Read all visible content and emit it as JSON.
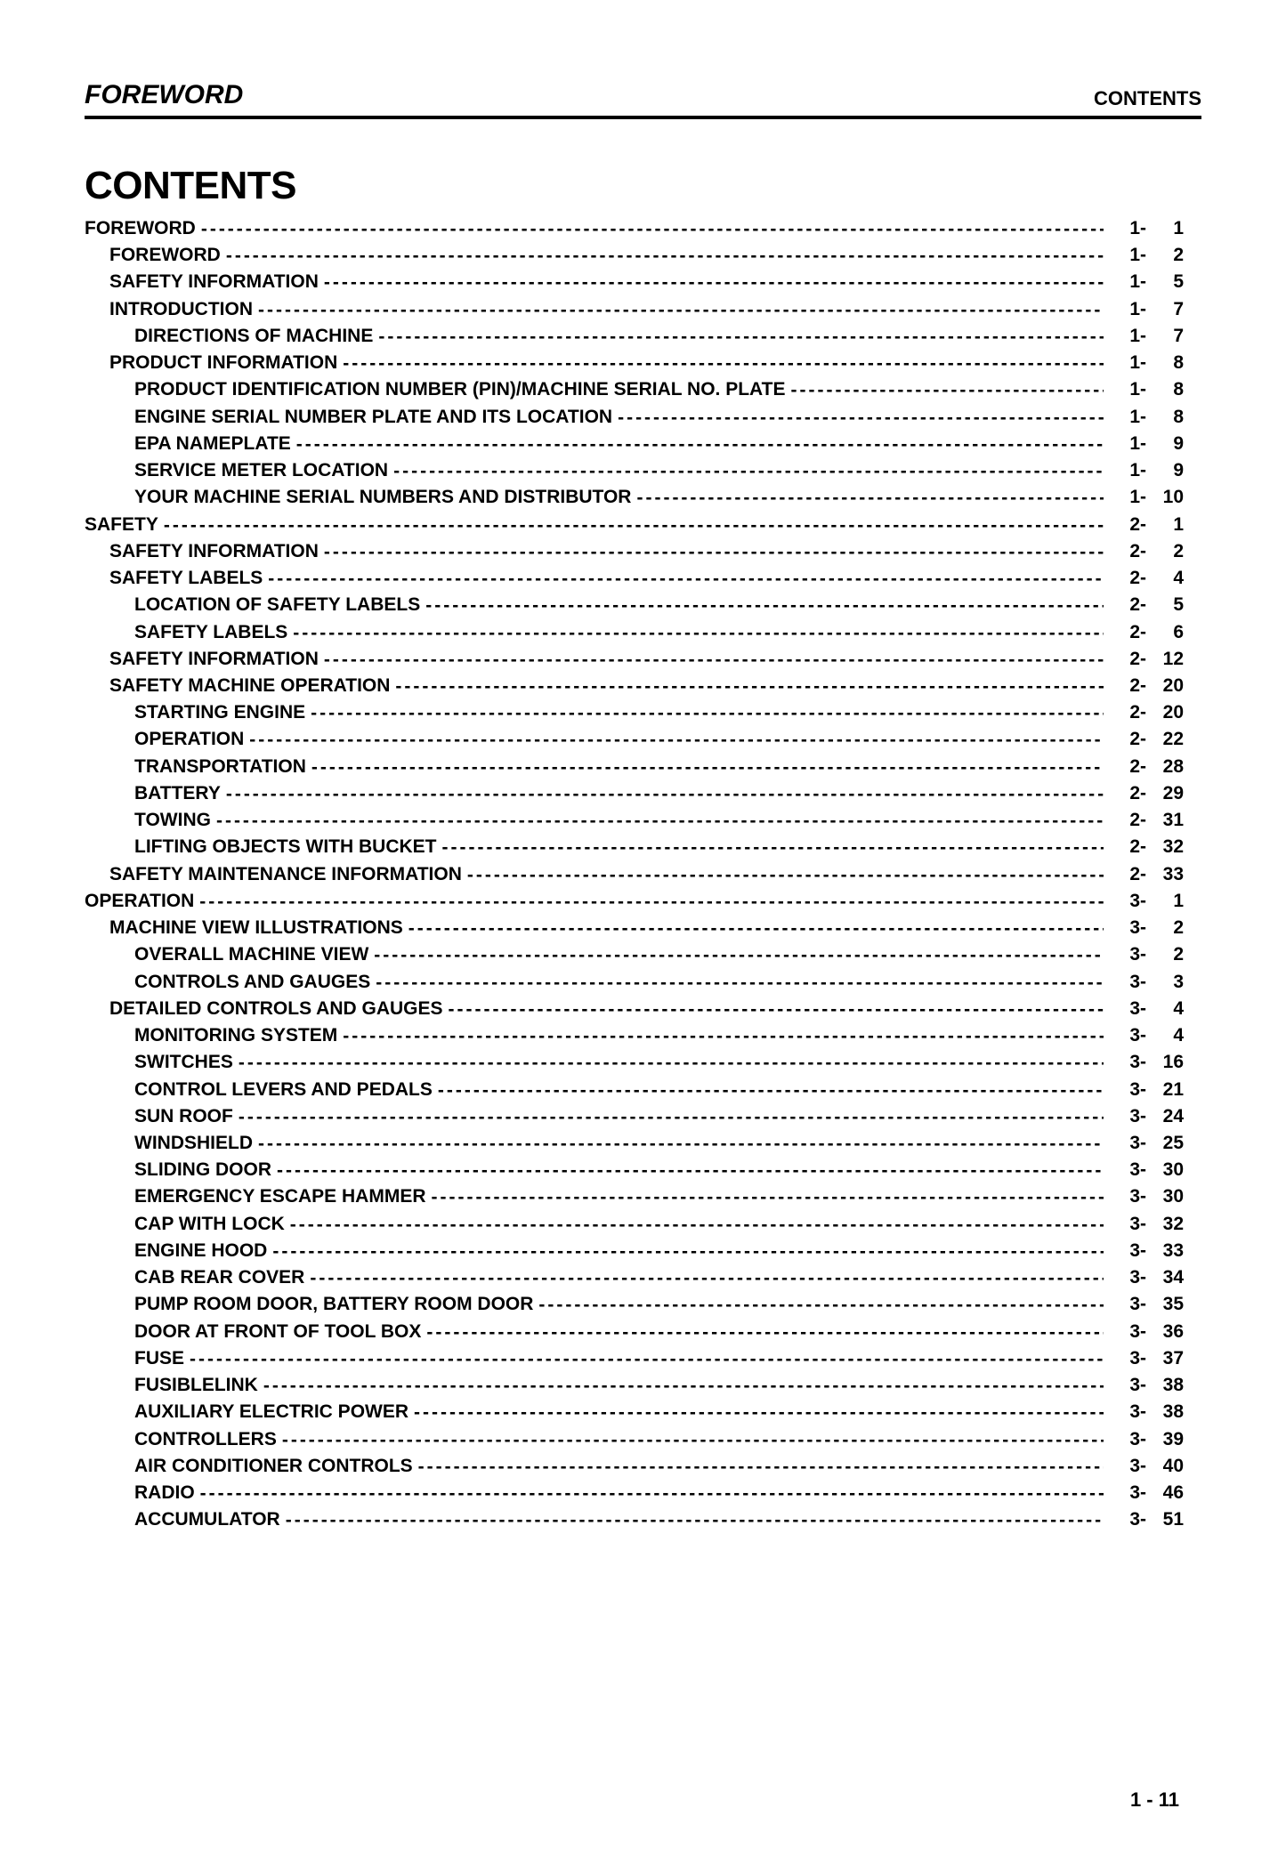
{
  "header": {
    "left": "FOREWORD",
    "right": "CONTENTS"
  },
  "title": "CONTENTS",
  "footer": "1 - 11",
  "leader_char": "-",
  "entries": [
    {
      "indent": 0,
      "label": "FOREWORD",
      "sec": "1-",
      "num": "1"
    },
    {
      "indent": 1,
      "label": "FOREWORD",
      "sec": "1-",
      "num": "2"
    },
    {
      "indent": 1,
      "label": "SAFETY INFORMATION",
      "sec": "1-",
      "num": "5"
    },
    {
      "indent": 1,
      "label": "INTRODUCTION",
      "sec": "1-",
      "num": "7"
    },
    {
      "indent": 2,
      "label": "DIRECTIONS OF MACHINE",
      "sec": "1-",
      "num": "7"
    },
    {
      "indent": 1,
      "label": "PRODUCT INFORMATION",
      "sec": "1-",
      "num": "8"
    },
    {
      "indent": 2,
      "label": "PRODUCT IDENTIFICATION NUMBER (PIN)/MACHINE SERIAL NO. PLATE",
      "sec": "1-",
      "num": "8"
    },
    {
      "indent": 2,
      "label": "ENGINE SERIAL NUMBER PLATE AND ITS LOCATION",
      "sec": "1-",
      "num": "8"
    },
    {
      "indent": 2,
      "label": "EPA NAMEPLATE",
      "sec": "1-",
      "num": "9"
    },
    {
      "indent": 2,
      "label": "SERVICE METER LOCATION",
      "sec": "1-",
      "num": "9"
    },
    {
      "indent": 2,
      "label": "YOUR MACHINE SERIAL NUMBERS AND DISTRIBUTOR",
      "sec": "1-",
      "num": "10"
    },
    {
      "indent": 0,
      "label": "SAFETY",
      "sec": "2-",
      "num": "1"
    },
    {
      "indent": 1,
      "label": "SAFETY INFORMATION",
      "sec": "2-",
      "num": "2"
    },
    {
      "indent": 1,
      "label": "SAFETY LABELS",
      "sec": "2-",
      "num": "4"
    },
    {
      "indent": 2,
      "label": "LOCATION OF SAFETY LABELS",
      "sec": "2-",
      "num": "5"
    },
    {
      "indent": 2,
      "label": "SAFETY LABELS",
      "sec": "2-",
      "num": "6"
    },
    {
      "indent": 1,
      "label": "SAFETY INFORMATION",
      "sec": "2-",
      "num": "12"
    },
    {
      "indent": 1,
      "label": "SAFETY MACHINE OPERATION",
      "sec": "2-",
      "num": "20"
    },
    {
      "indent": 2,
      "label": "STARTING ENGINE",
      "sec": "2-",
      "num": "20"
    },
    {
      "indent": 2,
      "label": "OPERATION",
      "sec": "2-",
      "num": "22"
    },
    {
      "indent": 2,
      "label": "TRANSPORTATION",
      "sec": "2-",
      "num": "28"
    },
    {
      "indent": 2,
      "label": "BATTERY",
      "sec": "2-",
      "num": "29"
    },
    {
      "indent": 2,
      "label": "TOWING",
      "sec": "2-",
      "num": "31"
    },
    {
      "indent": 2,
      "label": "LIFTING OBJECTS WITH BUCKET",
      "sec": "2-",
      "num": "32"
    },
    {
      "indent": 1,
      "label": "SAFETY MAINTENANCE INFORMATION",
      "sec": "2-",
      "num": "33"
    },
    {
      "indent": 0,
      "label": "OPERATION",
      "sec": "3-",
      "num": "1"
    },
    {
      "indent": 1,
      "label": "MACHINE VIEW ILLUSTRATIONS",
      "sec": "3-",
      "num": "2"
    },
    {
      "indent": 2,
      "label": "OVERALL MACHINE VIEW",
      "sec": "3-",
      "num": "2"
    },
    {
      "indent": 2,
      "label": "CONTROLS AND GAUGES",
      "sec": "3-",
      "num": "3"
    },
    {
      "indent": 1,
      "label": "DETAILED CONTROLS AND GAUGES",
      "sec": "3-",
      "num": "4"
    },
    {
      "indent": 2,
      "label": "MONITORING SYSTEM",
      "sec": "3-",
      "num": "4"
    },
    {
      "indent": 2,
      "label": "SWITCHES",
      "sec": "3-",
      "num": "16"
    },
    {
      "indent": 2,
      "label": "CONTROL LEVERS AND PEDALS",
      "sec": "3-",
      "num": "21"
    },
    {
      "indent": 2,
      "label": "SUN ROOF",
      "sec": "3-",
      "num": "24"
    },
    {
      "indent": 2,
      "label": "WINDSHIELD",
      "sec": "3-",
      "num": "25"
    },
    {
      "indent": 2,
      "label": "SLIDING DOOR",
      "sec": "3-",
      "num": "30"
    },
    {
      "indent": 2,
      "label": "EMERGENCY ESCAPE HAMMER",
      "sec": "3-",
      "num": "30"
    },
    {
      "indent": 2,
      "label": "CAP WITH LOCK",
      "sec": "3-",
      "num": "32"
    },
    {
      "indent": 2,
      "label": "ENGINE HOOD",
      "sec": "3-",
      "num": "33"
    },
    {
      "indent": 2,
      "label": "CAB REAR COVER",
      "sec": "3-",
      "num": "34"
    },
    {
      "indent": 2,
      "label": "PUMP ROOM DOOR, BATTERY ROOM DOOR",
      "sec": "3-",
      "num": "35"
    },
    {
      "indent": 2,
      "label": "DOOR AT FRONT OF TOOL BOX",
      "sec": "3-",
      "num": "36"
    },
    {
      "indent": 2,
      "label": "FUSE",
      "sec": "3-",
      "num": "37"
    },
    {
      "indent": 2,
      "label": "FUSIBLELINK",
      "sec": "3-",
      "num": "38"
    },
    {
      "indent": 2,
      "label": "AUXILIARY ELECTRIC POWER",
      "sec": "3-",
      "num": "38"
    },
    {
      "indent": 2,
      "label": "CONTROLLERS",
      "sec": "3-",
      "num": "39"
    },
    {
      "indent": 2,
      "label": "AIR CONDITIONER CONTROLS",
      "sec": "3-",
      "num": "40"
    },
    {
      "indent": 2,
      "label": "RADIO",
      "sec": "3-",
      "num": "46"
    },
    {
      "indent": 2,
      "label": "ACCUMULATOR",
      "sec": "3-",
      "num": "51"
    }
  ]
}
